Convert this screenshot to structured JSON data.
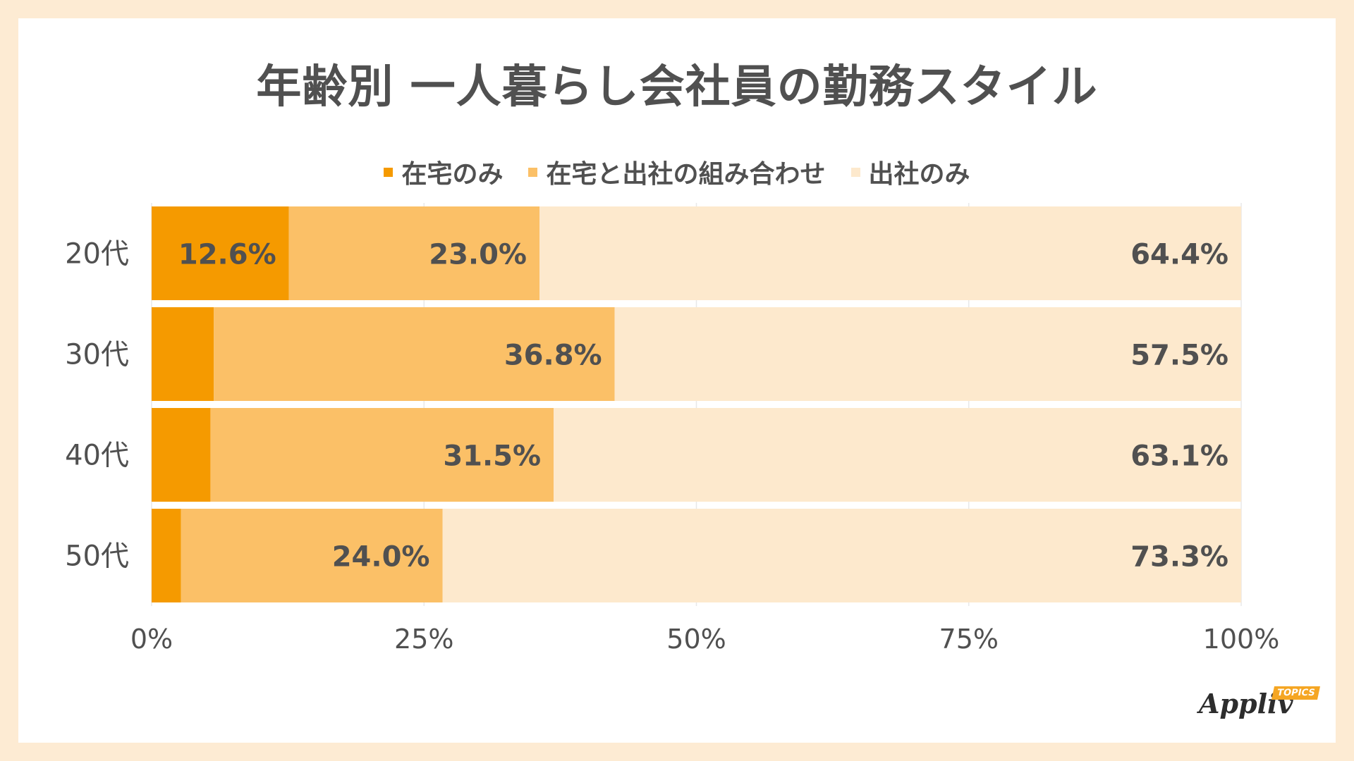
{
  "title": "年齢別 一人暮らし会社員の勤務スタイル",
  "brand": {
    "name": "Appliv",
    "badge": "TOPICS"
  },
  "colors": {
    "background": "#fdebd3",
    "grid": "#e8e8e8",
    "text": "#505050",
    "accent": "#f5a623"
  },
  "chart_data": {
    "type": "bar",
    "orientation": "horizontal",
    "stacked": true,
    "categories": [
      "20代",
      "30代",
      "40代",
      "50代"
    ],
    "series": [
      {
        "name": "在宅のみ",
        "color": "#f59a00",
        "values": [
          12.6,
          5.7,
          5.4,
          2.7
        ],
        "labels": [
          "12.6%",
          "",
          "",
          ""
        ]
      },
      {
        "name": "在宅と出社の組み合わせ",
        "color": "#fbc067",
        "values": [
          23.0,
          36.8,
          31.5,
          24.0
        ],
        "labels": [
          "23.0%",
          "36.8%",
          "31.5%",
          "24.0%"
        ]
      },
      {
        "name": "出社のみ",
        "color": "#fde9cd",
        "values": [
          64.4,
          57.5,
          63.1,
          73.3
        ],
        "labels": [
          "64.4%",
          "57.5%",
          "63.1%",
          "73.3%"
        ]
      }
    ],
    "xlim": [
      0,
      100
    ],
    "x_ticks": [
      0,
      25,
      50,
      75,
      100
    ],
    "x_tick_labels": [
      "0%",
      "25%",
      "50%",
      "75%",
      "100%"
    ],
    "grid": true,
    "legend_position": "top"
  }
}
